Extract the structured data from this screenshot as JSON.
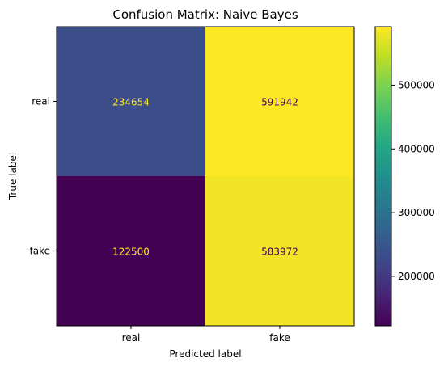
{
  "chart_data": {
    "type": "heatmap",
    "title": "Confusion Matrix: Naive Bayes",
    "xlabel": "Predicted label",
    "ylabel": "True label",
    "x_categories": [
      "real",
      "fake"
    ],
    "y_categories": [
      "real",
      "fake"
    ],
    "values": [
      [
        234654,
        591942
      ],
      [
        122500,
        583972
      ]
    ],
    "colormap": "viridis",
    "colorbar": {
      "min": 122500,
      "max": 591942,
      "ticks": [
        200000,
        300000,
        400000,
        500000
      ],
      "tick_labels": [
        "200000",
        "300000",
        "400000",
        "500000"
      ]
    },
    "text_color_light": "#fde725",
    "text_color_dark": "#440154"
  }
}
